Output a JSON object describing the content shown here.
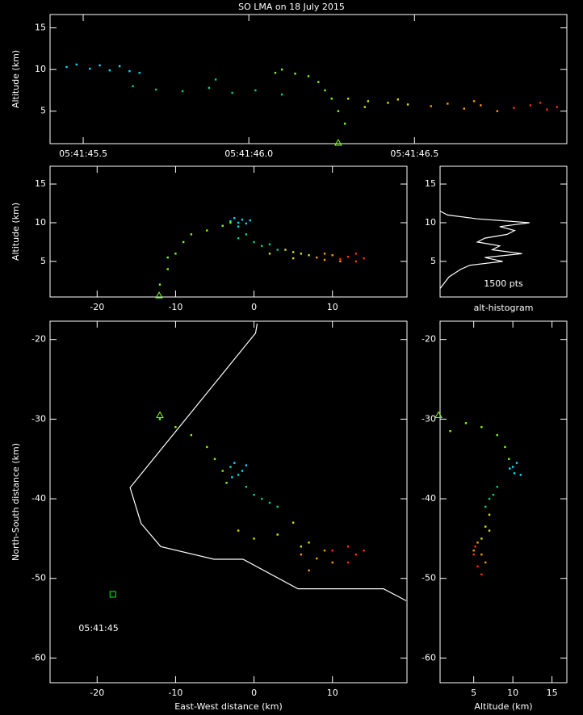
{
  "chart_data": [
    {
      "type": "scatter",
      "title": "SO LMA on 18 July 2015",
      "ylabel": "Altitude (km)",
      "xlim": [
        0.4,
        1.96
      ],
      "ylim": [
        1.1,
        16.6
      ],
      "xticks": [
        {
          "value": 0.5,
          "label": "05:41:45.5"
        },
        {
          "value": 1.0,
          "label": "05:41:46.0"
        },
        {
          "value": 1.5,
          "label": "05:41:46.5"
        }
      ],
      "yticks": [
        5,
        10,
        15
      ],
      "series": [
        {
          "color": "#00e0ff",
          "x": [
            0.45,
            0.48,
            0.52,
            0.55,
            0.58,
            0.61,
            0.64,
            0.67
          ],
          "y": [
            10.3,
            10.6,
            10.1,
            10.5,
            9.9,
            10.4,
            9.8,
            9.6
          ]
        },
        {
          "color": "#00d08a",
          "x": [
            0.65,
            0.72,
            0.8,
            0.88,
            0.95,
            1.02,
            1.1,
            0.9
          ],
          "y": [
            8.0,
            7.6,
            7.4,
            7.8,
            7.2,
            7.5,
            7.0,
            8.8
          ]
        },
        {
          "color": "#7cff00",
          "x": [
            1.08,
            1.1,
            1.14,
            1.18,
            1.21,
            1.23,
            1.25,
            1.27,
            1.29
          ],
          "y": [
            9.6,
            10.0,
            9.5,
            9.2,
            8.5,
            7.5,
            6.5,
            5.0,
            3.5
          ]
        },
        {
          "color": "#e0e000",
          "x": [
            1.3,
            1.36,
            1.42,
            1.48,
            1.35,
            1.45
          ],
          "y": [
            6.5,
            6.2,
            6.0,
            5.8,
            5.5,
            6.4
          ]
        },
        {
          "color": "#ff9900",
          "x": [
            1.55,
            1.6,
            1.65,
            1.7,
            1.75,
            1.68
          ],
          "y": [
            5.6,
            5.9,
            5.3,
            5.7,
            5.0,
            6.2
          ]
        },
        {
          "color": "#ff3000",
          "x": [
            1.8,
            1.85,
            1.9,
            1.93,
            1.88
          ],
          "y": [
            5.4,
            5.7,
            5.2,
            5.5,
            6.0
          ]
        }
      ],
      "markers": [
        {
          "shape": "triangle",
          "color": "#7cff00",
          "x": 1.27,
          "y": 1.2
        }
      ]
    },
    {
      "type": "scatter",
      "ylabel": "Altitude (km)",
      "xlim": [
        -26,
        19.5
      ],
      "ylim": [
        0.4,
        17.3
      ],
      "xticks": [
        -20,
        -10,
        0,
        10
      ],
      "yticks": [
        5,
        10,
        15
      ],
      "series": [
        {
          "color": "#00e0ff",
          "x": [
            -3,
            -2.5,
            -2,
            -1.5,
            -1,
            -0.5,
            -2
          ],
          "y": [
            10.2,
            10.6,
            10,
            10.4,
            9.9,
            10.3,
            9.5
          ]
        },
        {
          "color": "#00d08a",
          "x": [
            -1,
            0,
            1,
            2,
            -2,
            3
          ],
          "y": [
            8.5,
            7.5,
            7,
            7.2,
            8,
            6.5
          ]
        },
        {
          "color": "#7cff00",
          "x": [
            -12,
            -11,
            -10,
            -9,
            -8,
            -6,
            -4,
            -3,
            -11
          ],
          "y": [
            2,
            4,
            6,
            7.5,
            8.5,
            9,
            9.6,
            10,
            5.5
          ]
        },
        {
          "color": "#e0e000",
          "x": [
            2,
            4,
            5,
            6,
            7,
            5
          ],
          "y": [
            6,
            6.5,
            6.2,
            6,
            5.8,
            5.4
          ]
        },
        {
          "color": "#ff9900",
          "x": [
            8,
            9,
            10,
            11,
            9
          ],
          "y": [
            5.5,
            5.2,
            5.8,
            5,
            6
          ]
        },
        {
          "color": "#ff3000",
          "x": [
            11,
            12,
            13,
            14,
            13
          ],
          "y": [
            5.3,
            5.6,
            5,
            5.4,
            6
          ]
        }
      ],
      "markers": [
        {
          "shape": "triangle",
          "color": "#7cff00",
          "x": -12.1,
          "y": 0.6
        }
      ]
    },
    {
      "type": "line",
      "xlabel": "alt-histogram",
      "annotation": "1500 pts",
      "xlim": [
        0,
        85
      ],
      "ylim": [
        0.4,
        17.3
      ],
      "yticks": [
        5,
        10,
        15
      ],
      "series": [
        {
          "color": "#ffffff",
          "x": [
            0,
            2,
            4,
            6,
            10,
            14,
            20,
            42,
            30,
            55,
            35,
            40,
            25,
            30,
            45,
            50,
            40,
            60,
            25,
            5,
            0
          ],
          "y": [
            1.5,
            2,
            2.5,
            3,
            3.5,
            4,
            4.5,
            5,
            5.5,
            6,
            6.5,
            7,
            7.5,
            8,
            8.5,
            9,
            9.5,
            10,
            10.5,
            11,
            11.5
          ]
        }
      ]
    },
    {
      "type": "scatter",
      "xlabel": "East-West distance (km)",
      "ylabel": "North-South distance (km)",
      "annotation": "05:41:45",
      "xlim": [
        -26,
        19.5
      ],
      "ylim": [
        -63.1,
        -17.7
      ],
      "xticks": [
        -20,
        -10,
        0,
        10
      ],
      "yticks": [
        -60,
        -50,
        -40,
        -30,
        -20
      ],
      "lines": [
        {
          "color": "#ffffff",
          "x": [
            0.4,
            0.2,
            -15.8,
            -14.4,
            -11.9,
            -5.1,
            -1.4,
            5.6,
            16.5,
            19.4
          ],
          "y": [
            -18,
            -19.2,
            -38.6,
            -43.1,
            -46,
            -47.6,
            -47.6,
            -51.3,
            -51.3,
            -52.8
          ]
        }
      ],
      "series": [
        {
          "color": "#00e0ff",
          "x": [
            -3,
            -2.5,
            -2,
            -1.5,
            -1,
            -2.8
          ],
          "y": [
            -36,
            -35.5,
            -37,
            -36.5,
            -35.8,
            -37.3
          ]
        },
        {
          "color": "#00d08a",
          "x": [
            -1,
            0,
            1,
            2,
            3
          ],
          "y": [
            -38.5,
            -39.5,
            -40,
            -40.5,
            -41
          ]
        },
        {
          "color": "#7cff00",
          "x": [
            -12,
            -10,
            -8,
            -6,
            -5,
            -4,
            -3.5
          ],
          "y": [
            -30,
            -31,
            -32,
            -33.5,
            -35,
            -36.5,
            -38
          ]
        },
        {
          "color": "#e0e000",
          "x": [
            -2,
            0,
            3,
            5,
            6,
            7
          ],
          "y": [
            -44,
            -45,
            -44.5,
            -43,
            -46,
            -45.5
          ]
        },
        {
          "color": "#ff9900",
          "x": [
            6,
            8,
            9,
            10,
            7
          ],
          "y": [
            -47,
            -47.5,
            -46.5,
            -48,
            -49
          ]
        },
        {
          "color": "#ff3000",
          "x": [
            10,
            12,
            13,
            14,
            12
          ],
          "y": [
            -46.5,
            -46,
            -47,
            -46.5,
            -48
          ]
        }
      ],
      "markers": [
        {
          "shape": "triangle",
          "color": "#7cff00",
          "x": -12,
          "y": -29.5
        },
        {
          "shape": "square",
          "color": "#00ff00",
          "x": -18,
          "y": -52
        }
      ]
    },
    {
      "type": "scatter",
      "xlabel": "Altitude (km)",
      "xlim": [
        0.7,
        16.9
      ],
      "ylim": [
        -63.1,
        -17.7
      ],
      "xticks": [
        5,
        10,
        15
      ],
      "yticks": [
        -60,
        -50,
        -40,
        -30,
        -20
      ],
      "series": [
        {
          "color": "#00e0ff",
          "x": [
            10,
            10.5,
            11,
            10.2,
            9.6
          ],
          "y": [
            -36,
            -35.5,
            -37,
            -36.8,
            -36.2
          ]
        },
        {
          "color": "#00d08a",
          "x": [
            8,
            7,
            6.5,
            7.5
          ],
          "y": [
            -38.5,
            -40,
            -41,
            -39.5
          ]
        },
        {
          "color": "#7cff00",
          "x": [
            2,
            4,
            6,
            8,
            9,
            9.5
          ],
          "y": [
            -31.5,
            -30.5,
            -31,
            -32,
            -33.5,
            -35
          ]
        },
        {
          "color": "#e0e000",
          "x": [
            7,
            6.5,
            6,
            7
          ],
          "y": [
            -42,
            -43.5,
            -45,
            -44
          ]
        },
        {
          "color": "#ff9900",
          "x": [
            5.5,
            6,
            5,
            6.5
          ],
          "y": [
            -45.5,
            -47,
            -46.5,
            -48
          ]
        },
        {
          "color": "#ff3000",
          "x": [
            5,
            5.5,
            6,
            5.2
          ],
          "y": [
            -47,
            -48.5,
            -49.5,
            -46
          ]
        }
      ],
      "markers": [
        {
          "shape": "triangle",
          "color": "#7cff00",
          "x": 0.5,
          "y": -29.5
        }
      ]
    }
  ]
}
